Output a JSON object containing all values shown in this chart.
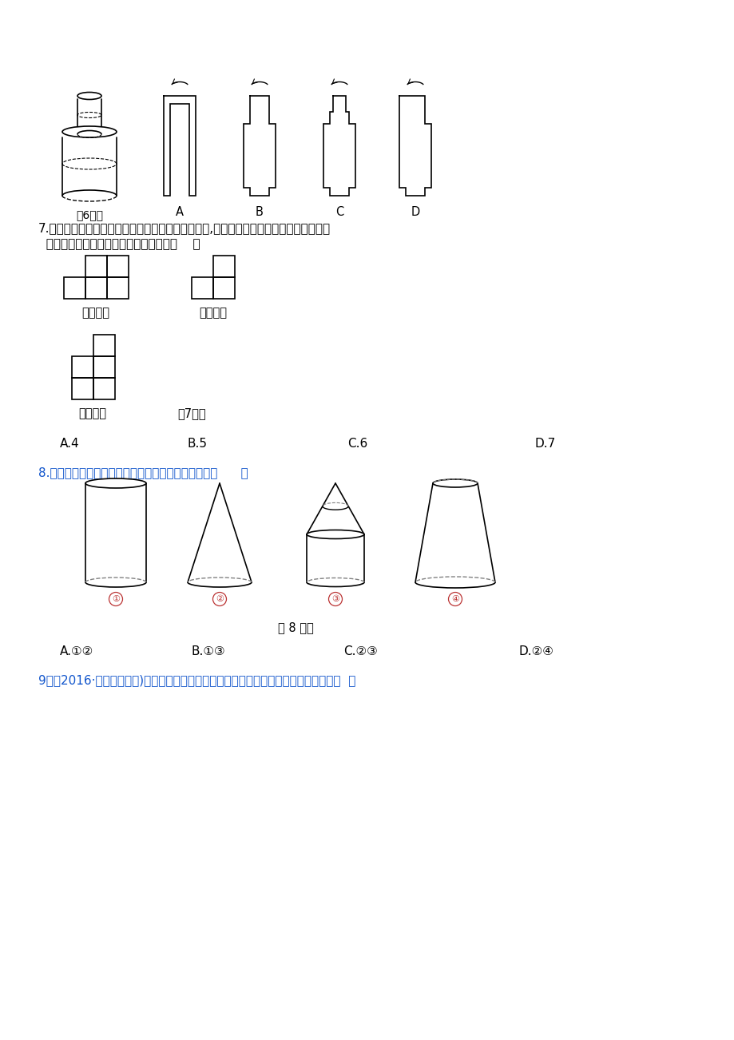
{
  "bg_color": "#ffffff",
  "text_color": "#000000",
  "blue_color": "#1155cc",
  "q7_text_line1": "7.如图是一个立体图形从三个不同方向看到的形状图,这个立体图形是由一些相同的小正方",
  "q7_text_line2": "  体构成，这些相同的小正方体的个数是（    ）",
  "q7_label_front": "从正面看",
  "q7_label_left": "从左面看",
  "q7_label_top": "从上面看",
  "q7_fig_label": "第7题图",
  "q7_options": [
    "A.4",
    "B.5",
    "C.6",
    "D.7"
  ],
  "q6_fig_label": "第6题图",
  "q6_options": [
    "A",
    "B",
    "C",
    "D"
  ],
  "q8_text": "8.如图所示的几何体中，从上面看到的图形相同的是（      ）",
  "q8_fig_label": "第 8 题图",
  "q8_options": [
    "A.①②",
    "B.①③",
    "C.②③",
    "D.②④"
  ],
  "q8_circle_labels": [
    "①",
    "②",
    "③",
    "④"
  ],
  "q9_text": "9．（2016·安徽中考改编)如图，一个放置在水平桌面上的圆柱，从正面看到的图形是（  ）"
}
